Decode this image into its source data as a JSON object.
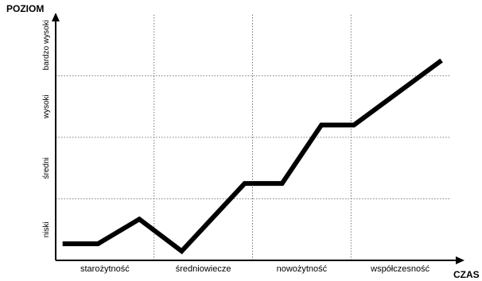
{
  "chart_data": {
    "type": "line",
    "xlabel": "CZAS",
    "ylabel": "POZIOM",
    "x_categories": [
      "starożytność",
      "średniowiecze",
      "nowożytność",
      "współczesność"
    ],
    "y_categories": [
      "niski",
      "średni",
      "wysoki",
      "bardzo wysoki"
    ],
    "xlim": [
      0,
      4
    ],
    "ylim": [
      0,
      4
    ],
    "grid": true,
    "series": [
      {
        "x": [
          0.07,
          0.43,
          0.85,
          1.28,
          1.92,
          2.3,
          2.7,
          3.03,
          3.92
        ],
        "y": [
          0.27,
          0.27,
          0.67,
          0.15,
          1.25,
          1.25,
          2.2,
          2.2,
          3.25
        ]
      }
    ]
  }
}
